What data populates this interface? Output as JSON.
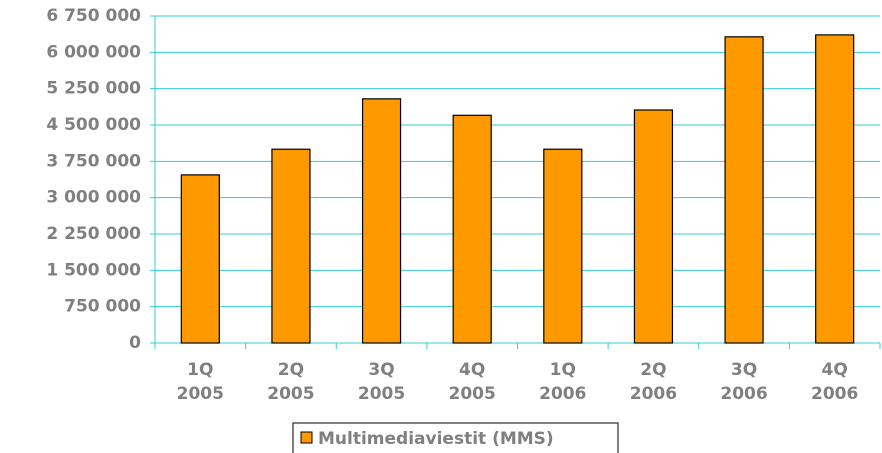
{
  "chart_data": {
    "type": "bar",
    "categories": [
      "1Q 2005",
      "2Q 2005",
      "3Q 2005",
      "4Q 2005",
      "1Q 2006",
      "2Q 2006",
      "3Q 2006",
      "4Q 2006"
    ],
    "series": [
      {
        "name": "Multimediaviestit (MMS)",
        "color": "#ff9900",
        "values": [
          3470000,
          4000000,
          5040000,
          4700000,
          4000000,
          4810000,
          6320000,
          6360000
        ]
      }
    ],
    "ylim": [
      0,
      6750000
    ],
    "yticks": [
      0,
      {
        "value": 750000,
        "label": "750 000"
      },
      {
        "value": 1500000,
        "label": "1 500 000"
      },
      {
        "value": 2250000,
        "label": "2 250 000"
      },
      {
        "value": 3000000,
        "label": "3 000 000"
      },
      {
        "value": 3750000,
        "label": "3 750 000"
      },
      {
        "value": 4500000,
        "label": "4 500 000"
      },
      {
        "value": 5250000,
        "label": "5 250 000"
      },
      {
        "value": 6000000,
        "label": "6 000 000"
      },
      {
        "value": 6750000,
        "label": "6 750 000"
      }
    ],
    "grid": true,
    "legend": "bottom"
  }
}
